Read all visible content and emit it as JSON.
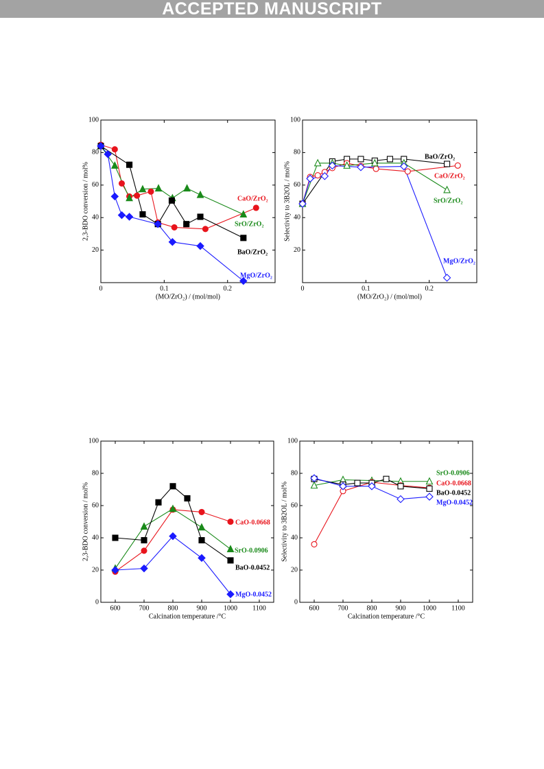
{
  "header": {
    "title": "ACCEPTED MANUSCRIPT"
  },
  "chart_data": [
    {
      "type": "line",
      "markers": "filled",
      "x_label": "(MO/ZrO₂)  / (mol/mol)",
      "y_label": "2,3-BDO conversion / mol%",
      "xlim": [
        0,
        0.275
      ],
      "ylim": [
        0,
        100
      ],
      "xticks": [
        0,
        0.1,
        0.2
      ],
      "yticks": [
        20,
        40,
        60,
        80,
        100
      ],
      "series": [
        {
          "name": "CaO/ZrO₂",
          "color": "#e8141c",
          "marker": "circle",
          "x": [
            0,
            0.022,
            0.033,
            0.045,
            0.057,
            0.079,
            0.09,
            0.116,
            0.165,
            0.245
          ],
          "values": [
            84.8,
            82,
            61,
            53,
            53.5,
            56,
            37,
            34,
            33,
            46
          ]
        },
        {
          "name": "SrO/ZrO₂",
          "color": "#1a8a1a",
          "marker": "triangle",
          "x": [
            0,
            0.022,
            0.045,
            0.066,
            0.091,
            0.113,
            0.136,
            0.157,
            0.225
          ],
          "values": [
            84,
            72,
            52,
            57.5,
            58,
            52,
            58,
            54,
            42
          ]
        },
        {
          "name": "BaO/ZrO₂",
          "color": "#000000",
          "marker": "square",
          "x": [
            0,
            0.045,
            0.066,
            0.09,
            0.112,
            0.135,
            0.157,
            0.225
          ],
          "values": [
            84,
            72.5,
            42,
            36,
            50.5,
            36,
            40.5,
            27.5
          ]
        },
        {
          "name": "MgO/ZrO₂",
          "color": "#1a1aff",
          "marker": "diamond",
          "x": [
            0,
            0.011,
            0.022,
            0.033,
            0.045,
            0.09,
            0.113,
            0.157,
            0.225
          ],
          "values": [
            84,
            79,
            53,
            41.5,
            40.5,
            36,
            25,
            22.5,
            1
          ]
        }
      ]
    },
    {
      "type": "line",
      "markers": "open",
      "x_label": "(MO/ZrO₂)  / (mol/mol)",
      "y_label": "Selectivity to 3B2OL / mol%",
      "xlim": [
        0,
        0.275
      ],
      "ylim": [
        0,
        100
      ],
      "xticks": [
        0,
        0.1,
        0.2
      ],
      "yticks": [
        20,
        40,
        60,
        80,
        100
      ],
      "series": [
        {
          "name": "BaO/ZrO₂",
          "color": "#000000",
          "marker": "square",
          "x": [
            0,
            0.047,
            0.07,
            0.092,
            0.114,
            0.138,
            0.16,
            0.228
          ],
          "values": [
            48.5,
            74.5,
            76,
            76,
            75,
            76,
            76,
            73
          ]
        },
        {
          "name": "CaO/ZrO₂",
          "color": "#e8141c",
          "marker": "circle",
          "x": [
            0,
            0.012,
            0.024,
            0.035,
            0.047,
            0.07,
            0.092,
            0.116,
            0.166,
            0.245
          ],
          "values": [
            48.5,
            65,
            66,
            68,
            70.5,
            73.5,
            71.7,
            70,
            68.4,
            72
          ]
        },
        {
          "name": "SrO/ZrO₂",
          "color": "#1a8a1a",
          "marker": "triangle",
          "x": [
            0,
            0.024,
            0.047,
            0.07,
            0.114,
            0.16,
            0.228
          ],
          "values": [
            48.5,
            73.5,
            73.5,
            72,
            73.5,
            73.5,
            57
          ]
        },
        {
          "name": "MgO/ZrO₂",
          "color": "#1a1aff",
          "marker": "diamond",
          "x": [
            0,
            0.012,
            0.035,
            0.047,
            0.092,
            0.16,
            0.228
          ],
          "values": [
            48.5,
            64,
            65.5,
            72,
            71,
            71.5,
            3
          ]
        }
      ]
    },
    {
      "type": "line",
      "markers": "filled",
      "x_label": "Calcination temperature /°C",
      "y_label": "2,3-BDO conversion / mol%",
      "xlim": [
        550,
        1150
      ],
      "ylim": [
        0,
        100
      ],
      "xticks": [
        600,
        700,
        800,
        900,
        1000,
        1100
      ],
      "yticks": [
        0,
        20,
        40,
        60,
        80,
        100
      ],
      "series": [
        {
          "name": "CaO-0.0668",
          "color": "#e8141c",
          "marker": "circle",
          "x": [
            600,
            700,
            800,
            900,
            1000
          ],
          "values": [
            19,
            32,
            57.5,
            56,
            50
          ]
        },
        {
          "name": "SrO-0.0906",
          "color": "#1a8a1a",
          "marker": "triangle",
          "x": [
            600,
            700,
            800,
            900,
            1000
          ],
          "values": [
            21,
            47,
            58,
            46.5,
            33
          ]
        },
        {
          "name": "BaO-0.0452",
          "color": "#000000",
          "marker": "square",
          "x": [
            600,
            700,
            750,
            800,
            850,
            900,
            1000
          ],
          "values": [
            40,
            38.5,
            62,
            72,
            64.5,
            38.5,
            26
          ]
        },
        {
          "name": "MgO-0.0452",
          "color": "#1a1aff",
          "marker": "diamond",
          "x": [
            600,
            700,
            800,
            900,
            1000
          ],
          "values": [
            20,
            21,
            41,
            27.5,
            5
          ]
        }
      ]
    },
    {
      "type": "line",
      "markers": "open",
      "x_label": "Calcination temperature /°C",
      "y_label": "Selectivity to 3B2OL / mol%",
      "xlim": [
        550,
        1150
      ],
      "ylim": [
        0,
        100
      ],
      "xticks": [
        600,
        700,
        800,
        900,
        1000,
        1100
      ],
      "yticks": [
        0,
        20,
        40,
        60,
        80,
        100
      ],
      "series": [
        {
          "name": "SrO-0.0906",
          "color": "#1a8a1a",
          "marker": "triangle",
          "x": [
            600,
            700,
            800,
            900,
            1000
          ],
          "values": [
            72.5,
            76,
            75.5,
            75,
            75
          ]
        },
        {
          "name": "CaO-0.0668",
          "color": "#e8141c",
          "marker": "circle",
          "x": [
            600,
            700,
            800,
            900,
            1000
          ],
          "values": [
            36,
            69,
            74.5,
            72.5,
            71
          ]
        },
        {
          "name": "BaO-0.0452",
          "color": "#000000",
          "marker": "square",
          "x": [
            600,
            700,
            750,
            800,
            850,
            900,
            1000
          ],
          "values": [
            76.5,
            73,
            74,
            74,
            76.5,
            72,
            70.5
          ]
        },
        {
          "name": "MgO-0.0452",
          "color": "#1a1aff",
          "marker": "diamond",
          "x": [
            600,
            700,
            800,
            900,
            1000
          ],
          "values": [
            77,
            72,
            72,
            64,
            65.5
          ]
        }
      ]
    }
  ]
}
